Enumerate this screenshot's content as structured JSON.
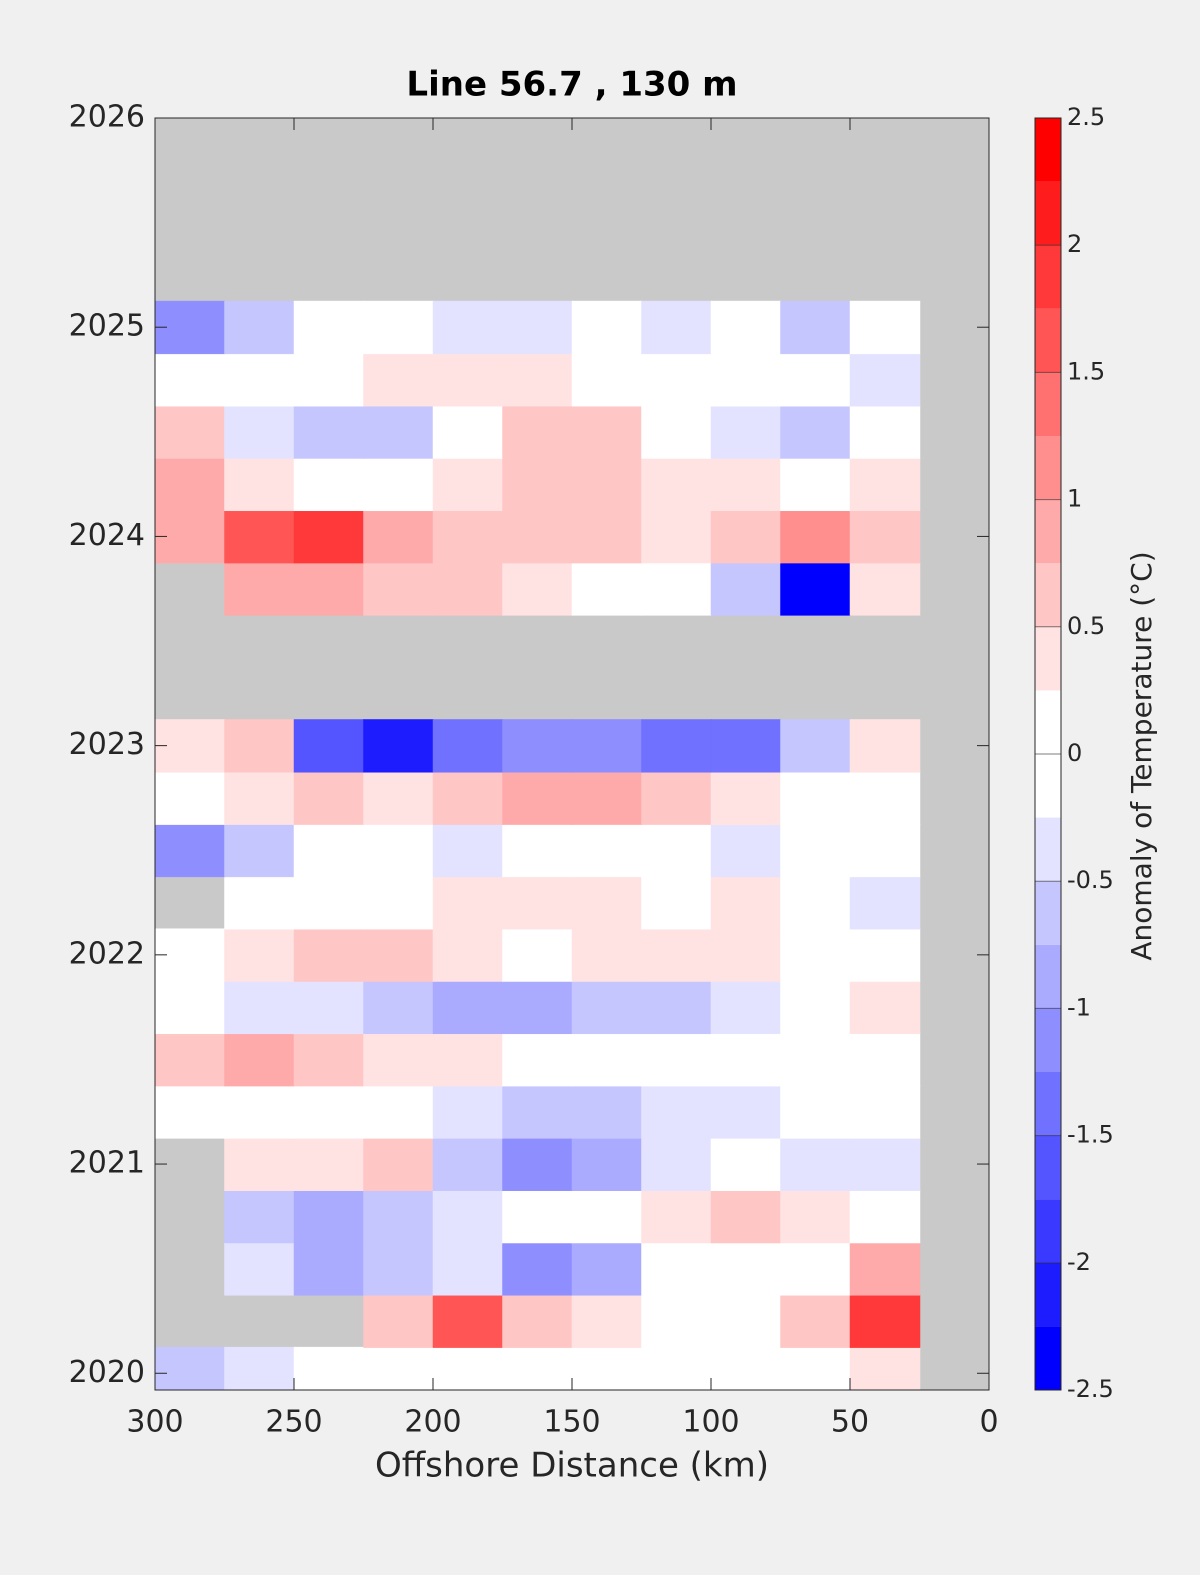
{
  "chart_data": {
    "type": "contour",
    "title": "Line 56.7 , 130 m",
    "xlabel": "Offshore Distance (km)",
    "xlim": [
      300,
      0
    ],
    "xticks": [
      300,
      250,
      200,
      150,
      100,
      50,
      0
    ],
    "ylim": [
      2019.92,
      2026
    ],
    "yticks": [
      2020,
      2021,
      2022,
      2023,
      2024,
      2025,
      2026
    ],
    "x": [
      287.5,
      262.5,
      237.5,
      212.5,
      187.5,
      162.5,
      137.5,
      112.5,
      87.5,
      62.5,
      37.5
    ],
    "y": [
      2020,
      2020.25,
      2020.5,
      2020.75,
      2021,
      2021.25,
      2021.5,
      2021.75,
      2022,
      2022.25,
      2022.5,
      2022.75,
      2023,
      2023.25,
      2023.5,
      2023.75,
      2024,
      2024.25,
      2024.5,
      2024.75,
      2025
    ],
    "z": [
      [
        -0.5,
        -0.25,
        0,
        0,
        0,
        0,
        0,
        0,
        0,
        0,
        0.25
      ],
      [
        null,
        null,
        null,
        0.5,
        1.5,
        0.5,
        0.25,
        0,
        0,
        0.5,
        1.75
      ],
      [
        null,
        -0.25,
        -0.75,
        -0.5,
        -0.25,
        -1,
        -0.75,
        0,
        0,
        0,
        0.75
      ],
      [
        null,
        -0.5,
        -0.75,
        -0.5,
        -0.25,
        0,
        0,
        0.25,
        0.5,
        0.25,
        0
      ],
      [
        null,
        0.25,
        0.25,
        0.5,
        -0.5,
        -1,
        -0.75,
        -0.25,
        0,
        -0.25,
        -0.25
      ],
      [
        0,
        0,
        0,
        0,
        -0.25,
        -0.5,
        -0.5,
        -0.25,
        -0.25,
        0,
        0
      ],
      [
        0.5,
        0.75,
        0.5,
        0.25,
        0.25,
        0,
        0,
        0,
        0,
        0,
        0
      ],
      [
        0,
        -0.25,
        -0.25,
        -0.5,
        -0.75,
        -0.75,
        -0.5,
        -0.5,
        -0.25,
        0,
        0.25
      ],
      [
        0,
        0.25,
        0.5,
        0.5,
        0.25,
        0,
        0.25,
        0.25,
        0.25,
        0,
        0
      ],
      [
        null,
        0,
        0,
        0,
        0.25,
        0.25,
        0.25,
        0,
        0.25,
        0,
        -0.25
      ],
      [
        -1,
        -0.5,
        0,
        0,
        -0.25,
        0,
        0,
        0,
        -0.25,
        0,
        0
      ],
      [
        0,
        0.25,
        0.5,
        0.25,
        0.5,
        0.75,
        0.75,
        0.5,
        0.25,
        0,
        0
      ],
      [
        0.25,
        0.5,
        -1.5,
        -2,
        -1.25,
        -1,
        -1,
        -1.25,
        -1.25,
        -0.5,
        0.25
      ],
      [
        null,
        null,
        null,
        null,
        null,
        null,
        null,
        null,
        null,
        null,
        null
      ],
      [
        null,
        null,
        null,
        null,
        null,
        null,
        null,
        null,
        null,
        null,
        null
      ],
      [
        null,
        0.75,
        0.75,
        0.5,
        0.5,
        0.25,
        0,
        0,
        -0.5,
        -2.25,
        0.25
      ],
      [
        0.75,
        1.5,
        1.75,
        0.75,
        0.5,
        0.5,
        0.5,
        0.25,
        0.5,
        1,
        0.5
      ],
      [
        0.75,
        0.25,
        0,
        0,
        0.25,
        0.5,
        0.5,
        0.25,
        0.25,
        0,
        0.25
      ],
      [
        0.5,
        -0.25,
        -0.5,
        -0.5,
        0,
        0.5,
        0.5,
        0,
        -0.25,
        -0.5,
        0
      ],
      [
        0,
        0,
        0,
        0.25,
        0.25,
        0.25,
        0,
        0,
        0,
        0,
        -0.25
      ],
      [
        -1,
        -0.5,
        0,
        0,
        -0.25,
        -0.25,
        0,
        -0.25,
        0,
        -0.5,
        0
      ]
    ],
    "nodata_color": "#c9c9c9",
    "colorbar": {
      "label": "Anomaly of Temperature (°C)",
      "lim": [
        -2.5,
        2.5
      ],
      "ticks": [
        -2.5,
        -2,
        -1.5,
        -1,
        -0.5,
        0,
        0.5,
        1,
        1.5,
        2,
        2.5
      ],
      "level_step": 0.25,
      "colors": {
        "low": "#0000ff",
        "mid": "#ffffff",
        "high": "#ff0000"
      }
    }
  }
}
